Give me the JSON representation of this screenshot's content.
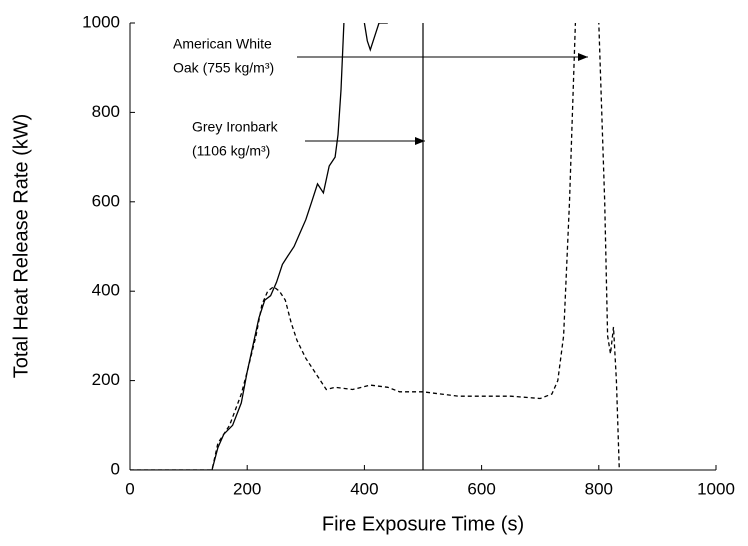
{
  "chart_data": {
    "type": "line",
    "x_label": "Fire Exposure Time (s)",
    "y_label": "Total Heat Release Rate (kW)",
    "xlim": [
      0,
      1000
    ],
    "xticks": [
      0,
      200,
      400,
      600,
      800,
      1000
    ],
    "ylim": [
      0,
      1000
    ],
    "yticks": [
      0,
      200,
      400,
      600,
      800,
      1000
    ],
    "grid": false,
    "vline": 500,
    "series": [
      {
        "name": "Grey Ironbark (1106 kg/m³)",
        "color": "#000000",
        "style": "solid",
        "x": [
          0,
          60,
          100,
          140,
          150,
          160,
          175,
          190,
          200,
          210,
          220,
          230,
          240,
          250,
          260,
          270,
          280,
          290,
          300,
          310,
          320,
          330,
          340,
          350,
          355,
          360,
          365,
          370,
          395,
          400,
          405,
          410,
          420,
          425,
          440
        ],
        "values": [
          0,
          0,
          0,
          0,
          50,
          80,
          100,
          150,
          220,
          280,
          340,
          380,
          390,
          420,
          460,
          480,
          500,
          530,
          560,
          600,
          640,
          620,
          680,
          700,
          750,
          850,
          1000,
          1100,
          null,
          1000,
          960,
          940,
          980,
          1000,
          1000
        ]
      },
      {
        "name": "American White Oak (755 kg/m³)",
        "color": "#000000",
        "style": "dashed",
        "x": [
          0,
          60,
          100,
          140,
          150,
          170,
          190,
          200,
          215,
          225,
          235,
          245,
          255,
          265,
          275,
          285,
          300,
          320,
          335,
          350,
          380,
          410,
          440,
          460,
          500,
          530,
          560,
          600,
          650,
          700,
          720,
          730,
          740,
          750,
          760,
          770,
          795,
          800,
          810,
          815,
          820,
          825,
          830,
          835
        ],
        "values": [
          0,
          0,
          0,
          0,
          60,
          100,
          170,
          220,
          300,
          370,
          400,
          410,
          400,
          380,
          330,
          290,
          250,
          210,
          180,
          185,
          180,
          190,
          185,
          175,
          175,
          170,
          165,
          165,
          165,
          160,
          170,
          200,
          300,
          600,
          1000,
          1100,
          1100,
          1000,
          600,
          300,
          260,
          320,
          200,
          0
        ]
      }
    ],
    "annotations": [
      {
        "lines": [
          "American White",
          "Oak (755 kg/m³)"
        ]
      },
      {
        "lines": [
          "Grey Ironbark",
          "(1106 kg/m³)"
        ]
      }
    ]
  }
}
